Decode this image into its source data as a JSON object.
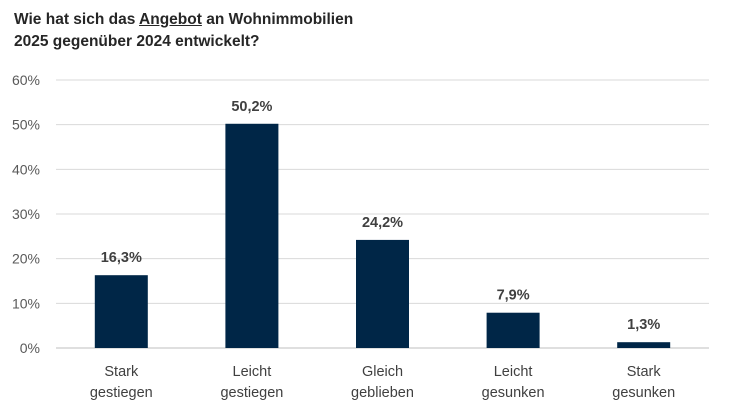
{
  "title": {
    "line1_pre": "Wie hat sich das ",
    "line1_u": "Angebot",
    "line1_post": " an Wohnimmobilien",
    "line2": "2025 gegenüber 2024 entwickelt?"
  },
  "colors": {
    "bar": "#002647",
    "grid": "#d9d9d9",
    "axis": "#bfbfbf"
  },
  "chart_data": {
    "type": "bar",
    "categories": [
      [
        "Stark",
        "gestiegen"
      ],
      [
        "Leicht",
        "gestiegen"
      ],
      [
        "Gleich",
        "geblieben"
      ],
      [
        "Leicht",
        "gesunken"
      ],
      [
        "Stark",
        "gesunken"
      ]
    ],
    "values": [
      16.3,
      50.2,
      24.2,
      7.9,
      1.3
    ],
    "data_labels": [
      "16,3%",
      "50,2%",
      "24,2%",
      "7,9%",
      "1,3%"
    ],
    "ylim": [
      0,
      60
    ],
    "yticks": [
      0,
      10,
      20,
      30,
      40,
      50,
      60
    ],
    "ytick_labels": [
      "0%",
      "10%",
      "20%",
      "30%",
      "40%",
      "50%",
      "60%"
    ],
    "grid": true,
    "xlabel": "",
    "ylabel": ""
  }
}
